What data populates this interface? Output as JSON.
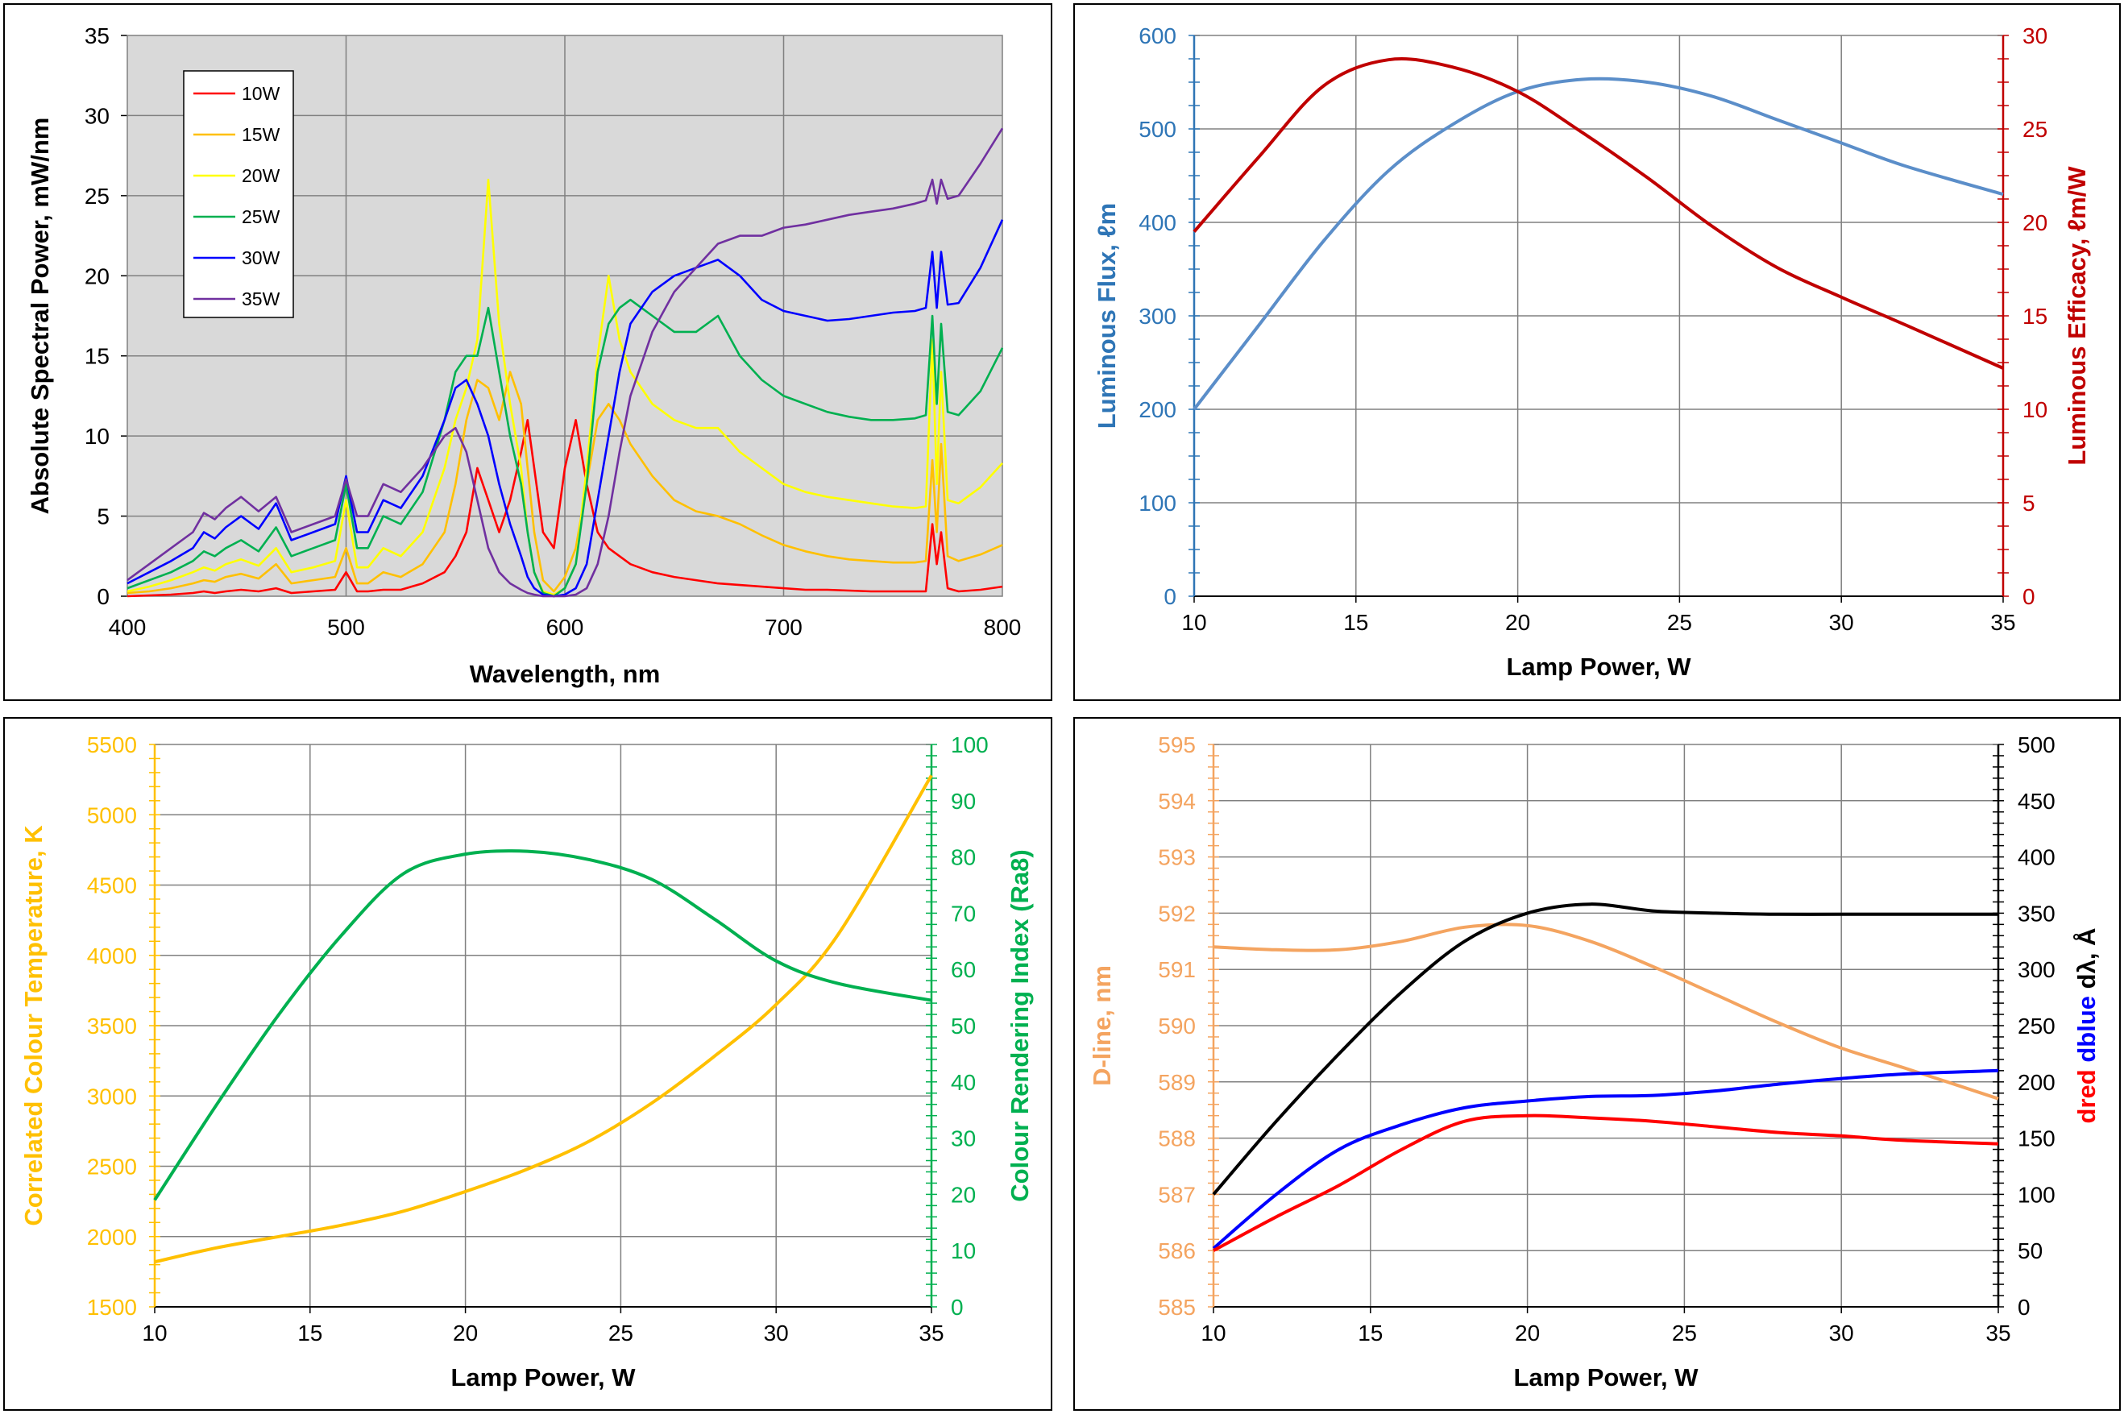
{
  "chart_data": [
    {
      "type": "line",
      "xlabel": "Wavelength, nm",
      "ylabel": "Absolute Spectral Power, mW/nm",
      "xlim": [
        400,
        800
      ],
      "ylim": [
        0,
        35
      ],
      "xticks": [
        400,
        500,
        600,
        700,
        800
      ],
      "yticks": [
        0,
        5,
        10,
        15,
        20,
        25,
        30,
        35
      ],
      "grid": true,
      "plot_background": "#d9d9d9",
      "legend_position": "top-left",
      "x": [
        400,
        410,
        420,
        430,
        435,
        440,
        445,
        452,
        460,
        468,
        475,
        485,
        495,
        500,
        505,
        510,
        517,
        525,
        535,
        545,
        550,
        555,
        560,
        565,
        570,
        575,
        580,
        583,
        586,
        590,
        595,
        600,
        605,
        610,
        615,
        620,
        625,
        630,
        640,
        650,
        660,
        670,
        680,
        690,
        700,
        710,
        720,
        730,
        740,
        750,
        760,
        765,
        768,
        770,
        772,
        775,
        780,
        790,
        800
      ],
      "series": [
        {
          "name": "10W",
          "color": "#ff0000",
          "values": [
            0,
            0.05,
            0.1,
            0.2,
            0.3,
            0.2,
            0.3,
            0.4,
            0.3,
            0.5,
            0.2,
            0.3,
            0.4,
            1.5,
            0.3,
            0.3,
            0.4,
            0.4,
            0.8,
            1.5,
            2.5,
            4,
            8,
            6,
            4,
            6,
            9,
            11,
            8,
            4,
            3,
            8,
            11,
            7,
            4,
            3,
            2.5,
            2,
            1.5,
            1.2,
            1,
            0.8,
            0.7,
            0.6,
            0.5,
            0.4,
            0.4,
            0.35,
            0.3,
            0.3,
            0.3,
            0.3,
            4.5,
            2,
            4,
            0.5,
            0.3,
            0.4,
            0.6
          ]
        },
        {
          "name": "15W",
          "color": "#ffc000",
          "values": [
            0.2,
            0.3,
            0.5,
            0.8,
            1,
            0.9,
            1.2,
            1.4,
            1.1,
            2,
            0.8,
            1,
            1.2,
            3,
            0.8,
            0.8,
            1.5,
            1.2,
            2,
            4,
            7,
            11,
            13.5,
            13,
            11,
            14,
            12,
            8,
            4,
            1,
            0.3,
            1.2,
            3,
            7,
            11,
            12,
            11,
            9.5,
            7.5,
            6,
            5.3,
            5,
            4.5,
            3.8,
            3.2,
            2.8,
            2.5,
            2.3,
            2.2,
            2.1,
            2.1,
            2.2,
            8.5,
            4,
            9.5,
            2.5,
            2.2,
            2.6,
            3.2
          ]
        },
        {
          "name": "20W",
          "color": "#ffff00",
          "values": [
            0.3,
            0.6,
            1,
            1.5,
            1.8,
            1.6,
            2,
            2.3,
            1.9,
            3,
            1.5,
            1.8,
            2.2,
            6,
            1.8,
            1.8,
            3,
            2.5,
            4,
            8,
            11,
            13,
            16,
            26,
            17,
            12,
            8,
            4,
            1.5,
            0.3,
            0.1,
            0.5,
            2,
            8,
            15,
            20,
            16,
            14,
            12,
            11,
            10.5,
            10.5,
            9,
            8,
            7,
            6.5,
            6.2,
            6,
            5.8,
            5.6,
            5.5,
            5.6,
            16,
            7,
            14,
            6,
            5.8,
            6.8,
            8.3
          ]
        },
        {
          "name": "25W",
          "color": "#00b050",
          "values": [
            0.5,
            1,
            1.5,
            2.2,
            2.8,
            2.5,
            3,
            3.5,
            2.8,
            4.3,
            2.5,
            3,
            3.5,
            7,
            3,
            3,
            5,
            4.5,
            6.5,
            11,
            14,
            15,
            15,
            18,
            14,
            10,
            7,
            4,
            1.5,
            0.2,
            0,
            0.5,
            2,
            7,
            14,
            17,
            18,
            18.5,
            17.5,
            16.5,
            16.5,
            17.5,
            15,
            13.5,
            12.5,
            12,
            11.5,
            11.2,
            11,
            11,
            11.1,
            11.3,
            17.5,
            12,
            17,
            11.5,
            11.3,
            12.8,
            15.5
          ]
        },
        {
          "name": "30W",
          "color": "#0000ff",
          "values": [
            0.8,
            1.5,
            2.2,
            3,
            4,
            3.6,
            4.3,
            5,
            4.2,
            5.8,
            3.5,
            4,
            4.5,
            7.5,
            4,
            4,
            6,
            5.5,
            7.5,
            11,
            13,
            13.5,
            12,
            10,
            7,
            4.5,
            2.5,
            1.2,
            0.5,
            0.1,
            0,
            0.1,
            0.5,
            2,
            6,
            10,
            14,
            17,
            19,
            20,
            20.5,
            21,
            20,
            18.5,
            17.8,
            17.5,
            17.2,
            17.3,
            17.5,
            17.7,
            17.8,
            18,
            21.5,
            18,
            21.5,
            18.2,
            18.3,
            20.5,
            23.5
          ]
        },
        {
          "name": "35W",
          "color": "#7030a0",
          "values": [
            1,
            2,
            3,
            4,
            5.2,
            4.8,
            5.5,
            6.2,
            5.3,
            6.2,
            4,
            4.5,
            5,
            7.3,
            5,
            5,
            7,
            6.5,
            8,
            10,
            10.5,
            9,
            6,
            3,
            1.5,
            0.8,
            0.4,
            0.2,
            0.1,
            0,
            0,
            0,
            0.1,
            0.5,
            2,
            5,
            9,
            12.5,
            16.5,
            19,
            20.5,
            22,
            22.5,
            22.5,
            23,
            23.2,
            23.5,
            23.8,
            24,
            24.2,
            24.5,
            24.7,
            26,
            24.5,
            26,
            24.8,
            25,
            27,
            29.2
          ]
        }
      ]
    },
    {
      "type": "line",
      "xlabel": "Lamp Power, W",
      "ylabel_left": "Luminous Flux, ℓm",
      "ylabel_right": "Luminous Efficacy, ℓm/W",
      "xlim": [
        10,
        35
      ],
      "ylim_left": [
        0,
        600
      ],
      "ylim_right": [
        0,
        30
      ],
      "xticks": [
        10,
        15,
        20,
        25,
        30,
        35
      ],
      "yticks_left": [
        0,
        100,
        200,
        300,
        400,
        500,
        600
      ],
      "yticks_right": [
        0,
        5,
        10,
        15,
        20,
        25,
        30
      ],
      "left_color": "#2e75b6",
      "right_color": "#c00000",
      "grid": true,
      "x": [
        10,
        12,
        14,
        16,
        18,
        20,
        22,
        24,
        26,
        28,
        30,
        32,
        35
      ],
      "series": [
        {
          "axis": "left",
          "color": "#5b8ec9",
          "values": [
            200,
            290,
            380,
            455,
            505,
            540,
            553,
            550,
            535,
            510,
            485,
            460,
            430
          ]
        },
        {
          "axis": "right",
          "color": "#c00000",
          "values": [
            19.5,
            23.5,
            27.3,
            28.7,
            28.3,
            27,
            24.8,
            22.4,
            19.8,
            17.6,
            16,
            14.5,
            12.2
          ]
        }
      ]
    },
    {
      "type": "line",
      "xlabel": "Lamp Power, W",
      "ylabel_left": "Correlated Colour Temperature, K",
      "ylabel_right": "Colour Rendering Index (Ra8)",
      "xlim": [
        10,
        35
      ],
      "ylim_left": [
        1500,
        5500
      ],
      "ylim_right": [
        0,
        100
      ],
      "xticks": [
        10,
        15,
        20,
        25,
        30,
        35
      ],
      "yticks_left": [
        1500,
        2000,
        2500,
        3000,
        3500,
        4000,
        4500,
        5000,
        5500
      ],
      "yticks_right": [
        0,
        10,
        20,
        30,
        40,
        50,
        60,
        70,
        80,
        90,
        100
      ],
      "left_color": "#ffc000",
      "right_color": "#00b050",
      "grid": true,
      "x": [
        10,
        12,
        14,
        16,
        18,
        20,
        22,
        24,
        26,
        28,
        30,
        32,
        35
      ],
      "series": [
        {
          "axis": "left",
          "color": "#ffc000",
          "values": [
            1820,
            1920,
            2000,
            2080,
            2180,
            2320,
            2480,
            2680,
            2950,
            3280,
            3650,
            4150,
            5280
          ]
        },
        {
          "axis": "right",
          "color": "#00b050",
          "values": [
            19,
            36,
            52,
            66,
            77,
            80.5,
            81,
            79.5,
            76,
            69,
            61.5,
            57.5,
            54.5
          ]
        }
      ]
    },
    {
      "type": "line",
      "xlabel": "Lamp Power, W",
      "ylabel_left": "D-line, nm",
      "ylabel_right_parts": [
        {
          "text": "dred",
          "color": "#ff0000"
        },
        {
          "text": "dblue",
          "color": "#0000ff"
        },
        {
          "text": "dλ, Å",
          "color": "#000000"
        }
      ],
      "xlim": [
        10,
        35
      ],
      "ylim_left": [
        585,
        595
      ],
      "ylim_right": [
        0,
        500
      ],
      "xticks": [
        10,
        15,
        20,
        25,
        30,
        35
      ],
      "yticks_left": [
        585,
        586,
        587,
        588,
        589,
        590,
        591,
        592,
        593,
        594,
        595
      ],
      "yticks_right": [
        0,
        50,
        100,
        150,
        200,
        250,
        300,
        350,
        400,
        450,
        500
      ],
      "left_color": "#f4a460",
      "right_color": "#000000",
      "grid": true,
      "x": [
        10,
        12,
        14,
        16,
        18,
        20,
        22,
        24,
        26,
        28,
        30,
        32,
        35
      ],
      "series": [
        {
          "axis": "left",
          "color": "#f4a460",
          "values": [
            591.4,
            591.35,
            591.35,
            591.5,
            591.75,
            591.78,
            591.5,
            591.05,
            590.55,
            590.05,
            589.6,
            589.25,
            588.7
          ]
        },
        {
          "axis": "right",
          "color": "#000000",
          "values": [
            100,
            165,
            225,
            280,
            325,
            350,
            358,
            352,
            350,
            349,
            349,
            349,
            349
          ]
        },
        {
          "axis": "right",
          "color": "#0000ff",
          "values": [
            52,
            100,
            140,
            162,
            177,
            183,
            187,
            188,
            192,
            198,
            203,
            207,
            210
          ]
        },
        {
          "axis": "right",
          "color": "#ff0000",
          "values": [
            50,
            80,
            108,
            140,
            165,
            170,
            168,
            165,
            160,
            155,
            152,
            148,
            145
          ]
        }
      ]
    }
  ]
}
